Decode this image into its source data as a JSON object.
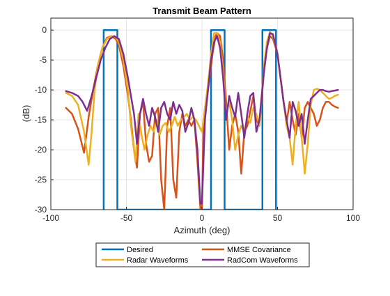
{
  "chart_data": {
    "type": "line",
    "title": "Transmit Beam Pattern",
    "xlabel": "Azimuth (deg)",
    "ylabel": "(dB)",
    "xlim": [
      -100,
      100
    ],
    "ylim": [
      -30,
      2
    ],
    "xticks": [
      -100,
      -50,
      0,
      50,
      100
    ],
    "yticks": [
      0,
      -5,
      -10,
      -15,
      -20,
      -25,
      -30
    ],
    "grid": true,
    "legend": {
      "placement": "bottom-outside",
      "columns": 2
    },
    "series": [
      {
        "name": "Desired",
        "color": "#0072BD",
        "x": [
          -65,
          -65,
          -56,
          -56,
          6,
          6,
          15,
          15,
          40,
          40,
          49,
          49
        ],
        "y": [
          -30,
          0,
          0,
          -30,
          -30,
          0,
          0,
          -30,
          -30,
          0,
          0,
          -30
        ]
      },
      {
        "name": "MMSE Covariance",
        "color": "#D95319",
        "x": [
          -90,
          -86,
          -82,
          -78,
          -75,
          -72,
          -69,
          -66,
          -63,
          -60,
          -57,
          -55,
          -52,
          -49,
          -47,
          -45,
          -43,
          -41,
          -39,
          -37,
          -35,
          -33,
          -31,
          -29,
          -27,
          -25,
          -23,
          -21,
          -19,
          -17,
          -15,
          -13,
          -11,
          -9,
          -7,
          -5,
          -3,
          -1,
          0,
          1,
          3,
          5,
          7,
          9,
          10,
          12,
          14,
          16,
          18,
          20,
          22,
          24,
          26,
          28,
          30,
          32,
          34,
          36,
          38,
          41,
          43,
          45,
          47,
          50,
          52,
          54,
          56,
          58,
          60,
          62,
          64,
          66,
          68,
          70,
          72,
          74,
          76,
          78,
          80,
          82,
          84,
          86,
          88,
          90
        ],
        "y": [
          -13,
          -14,
          -16.5,
          -20.5,
          -14.5,
          -10,
          -6,
          -3,
          -1.3,
          -1,
          -1.5,
          -2.5,
          -6,
          -11,
          -15,
          -20,
          -23,
          -14,
          -12,
          -19,
          -22,
          -21,
          -14,
          -13,
          -25,
          -30,
          -16,
          -13,
          -25,
          -28,
          -17,
          -14,
          -16,
          -15,
          -16,
          -15,
          -22,
          -30,
          -30,
          -15,
          -12,
          -8,
          -4,
          -1,
          -0.5,
          -1,
          -5,
          -12,
          -20,
          -16,
          -14,
          -17,
          -24,
          -17,
          -16,
          -13.5,
          -11,
          -15,
          -16,
          -7,
          -3,
          -1,
          -1.5,
          -4,
          -8,
          -12,
          -15.5,
          -12,
          -15,
          -17.5,
          -14,
          -18,
          -13,
          -12,
          -13,
          -14,
          -16,
          -15,
          -13,
          -12,
          -12,
          -12.5,
          -12.8,
          -13
        ]
      },
      {
        "name": "Radar Waveforms",
        "color": "#EDB120",
        "x": [
          -90,
          -86,
          -82,
          -78,
          -75,
          -73,
          -71,
          -69,
          -66,
          -63,
          -60,
          -57,
          -55,
          -52,
          -49,
          -47,
          -44,
          -42,
          -40,
          -38,
          -36,
          -34,
          -32,
          -30,
          -28,
          -26,
          -24,
          -22,
          -20,
          -18,
          -16,
          -14,
          -12,
          -10,
          -8,
          -6,
          -4,
          -2,
          0,
          2,
          4,
          6,
          8,
          10,
          12,
          14,
          16,
          18,
          20,
          22,
          24,
          26,
          28,
          30,
          32,
          34,
          36,
          38,
          41,
          43,
          45,
          47,
          50,
          52,
          54,
          56,
          58,
          60,
          62,
          64,
          66,
          68,
          70,
          72,
          74,
          76,
          78,
          80,
          82,
          84,
          86,
          88,
          90
        ],
        "y": [
          -10.5,
          -11,
          -12.5,
          -17,
          -22.5,
          -17,
          -10,
          -6,
          -3,
          -1.5,
          -1,
          -1.2,
          -2,
          -5,
          -10,
          -16,
          -22,
          -14,
          -17.5,
          -20,
          -17.5,
          -16,
          -17,
          -15,
          -17.5,
          -16,
          -15.5,
          -17,
          -16,
          -14.5,
          -16,
          -15,
          -14.5,
          -14,
          -15,
          -14.5,
          -15,
          -16,
          -17,
          -13,
          -9,
          -4,
          -0.5,
          -0.5,
          -2,
          -7,
          -14,
          -12,
          -15,
          -20,
          -17.5,
          -16,
          -17,
          -14.5,
          -15.5,
          -13,
          -14,
          -16,
          -6,
          -2,
          -0.3,
          -1,
          -4,
          -8,
          -12,
          -16,
          -18,
          -22.5,
          -16,
          -12,
          -18,
          -24,
          -19,
          -12.5,
          -10,
          -9.8,
          -10,
          -10.5,
          -11,
          -11.5,
          -11.3,
          -11,
          -10.8
        ]
      },
      {
        "name": "RadCom Waveforms",
        "color": "#7E2F8E",
        "x": [
          -90,
          -86,
          -82,
          -79,
          -76,
          -73,
          -70,
          -67,
          -64,
          -61,
          -58,
          -55,
          -52,
          -49,
          -47,
          -45,
          -43,
          -41,
          -39,
          -37,
          -35,
          -33,
          -31,
          -29,
          -27,
          -25,
          -23,
          -21,
          -19,
          -17,
          -15,
          -13,
          -11,
          -9,
          -7,
          -5,
          -3,
          -1,
          0,
          2,
          4,
          6,
          8,
          10,
          12,
          14,
          16,
          18,
          20,
          22,
          24,
          26,
          28,
          30,
          32,
          34,
          36,
          38,
          41,
          43,
          45,
          47,
          50,
          52,
          54,
          56,
          58,
          60,
          62,
          64,
          66,
          68,
          70,
          72,
          74,
          76,
          78,
          80,
          82,
          84,
          86,
          88,
          90
        ],
        "y": [
          -10.2,
          -10.5,
          -11,
          -12,
          -13.5,
          -11,
          -8,
          -5,
          -3,
          -1.5,
          -1,
          -1.5,
          -4,
          -8,
          -11,
          -14,
          -19,
          -14,
          -11.5,
          -14,
          -16,
          -13,
          -14.5,
          -17,
          -13,
          -12,
          -14,
          -15,
          -12,
          -14,
          -12.5,
          -13.5,
          -17,
          -15.5,
          -13,
          -15,
          -20,
          -29,
          -29,
          -15,
          -10,
          -5,
          -2,
          -1,
          -3,
          -8,
          -15,
          -11,
          -13,
          -14.5,
          -10.5,
          -14,
          -18,
          -14,
          -11,
          -10.5,
          -17,
          -15,
          -7,
          -3,
          -0.5,
          -0.7,
          -4,
          -8,
          -12,
          -15,
          -18,
          -12,
          -13.5,
          -16,
          -14,
          -19,
          -15,
          -11.5,
          -11,
          -10.5,
          -10,
          -10,
          -10.2,
          -10.3,
          -10.2,
          -10.1,
          -10
        ]
      }
    ]
  }
}
